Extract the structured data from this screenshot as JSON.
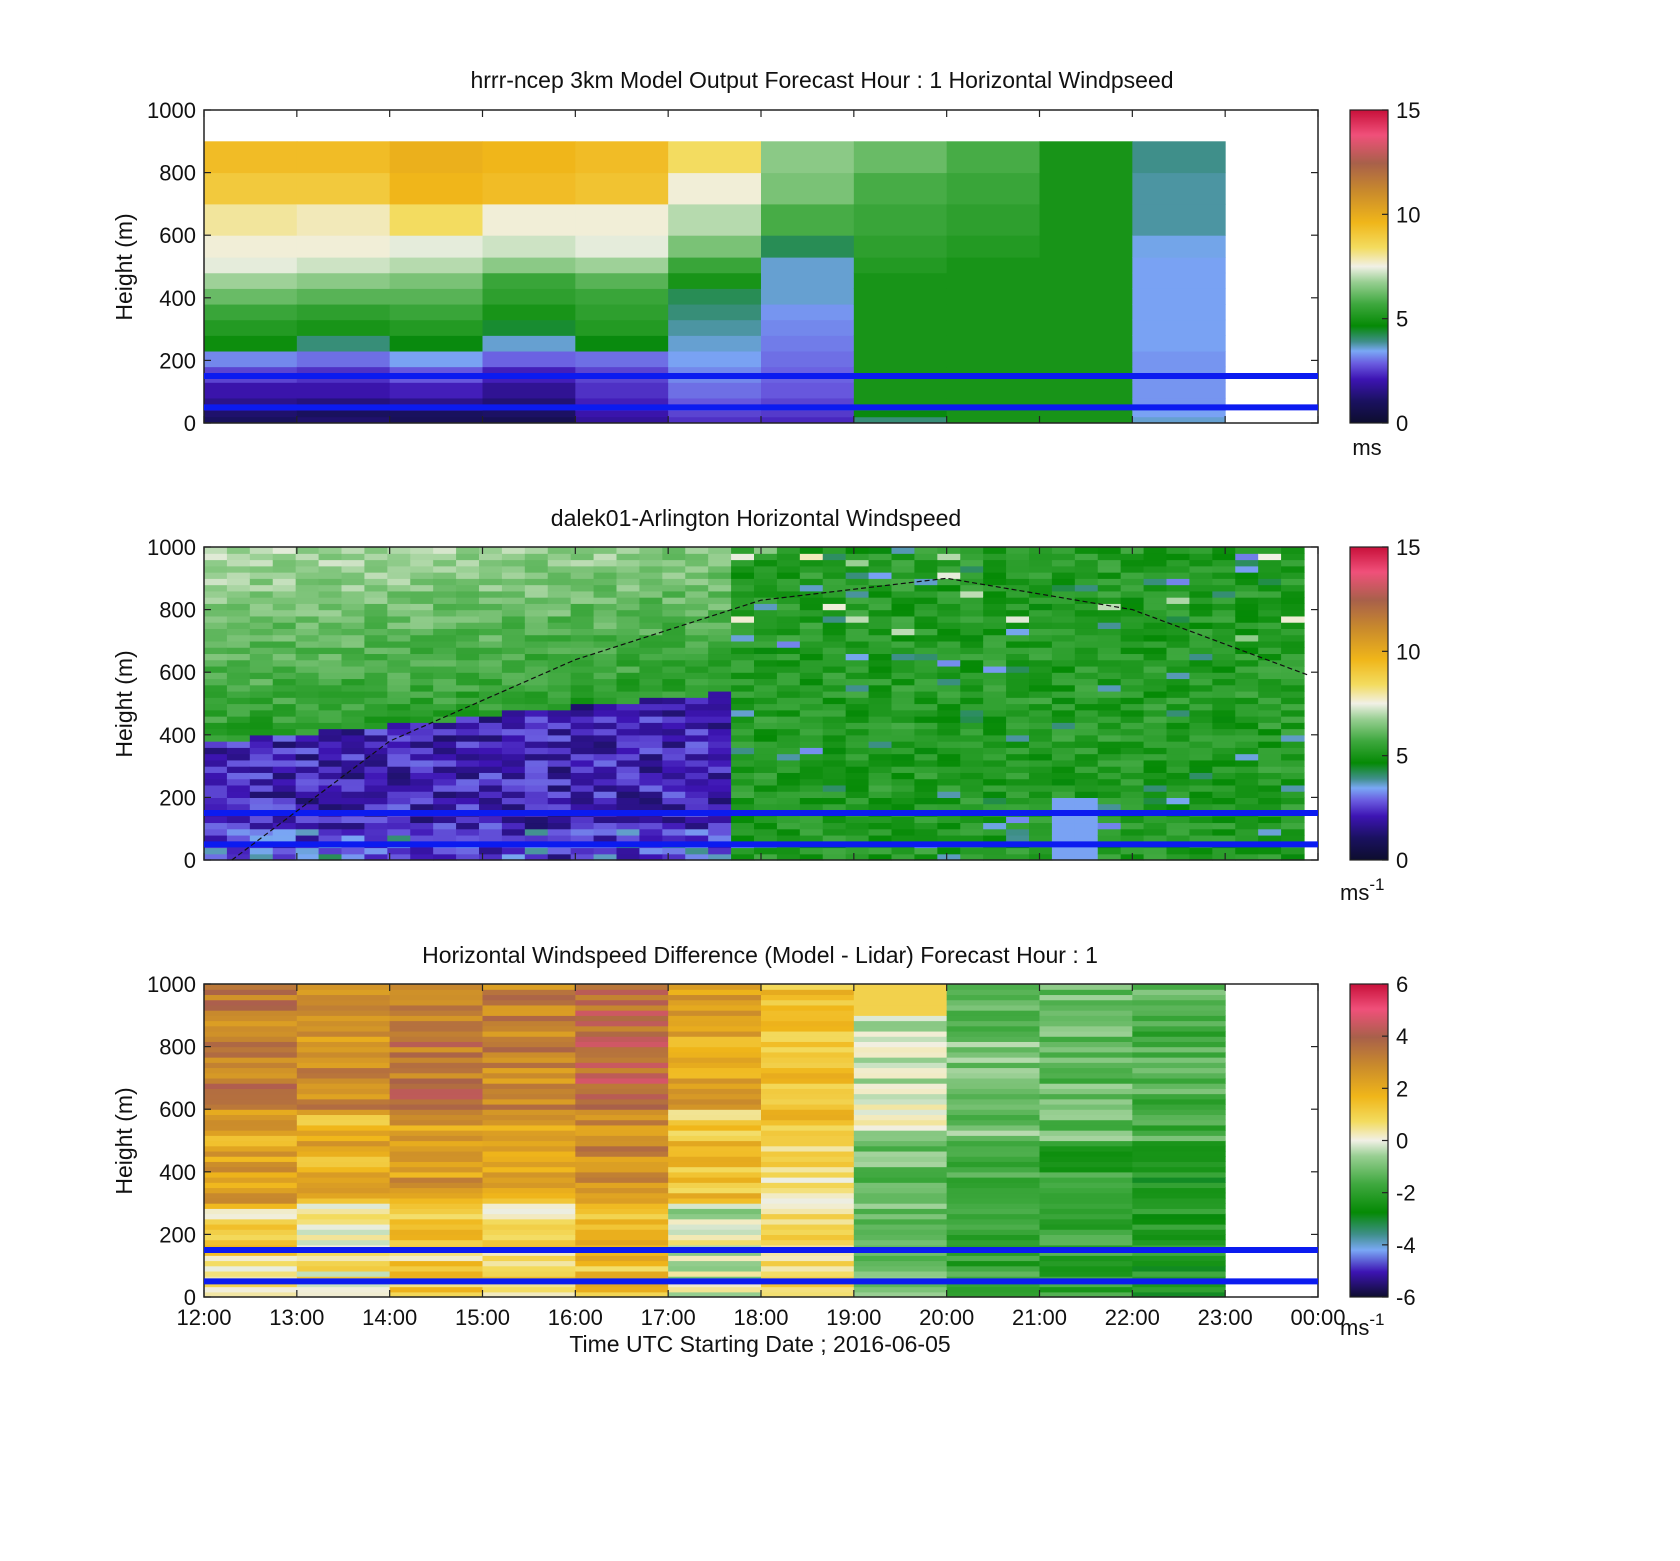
{
  "chart_data": [
    {
      "type": "heatmap",
      "title": "hrrr-ncep 3km Model Output   Forecast Hour : 1 Horizontal Windpseed",
      "xlabel": "",
      "ylabel": "Height (m)",
      "xlim": [
        "12:00",
        "00:00"
      ],
      "ylim": [
        0,
        1000
      ],
      "y_ticks": [
        "0",
        "200",
        "400",
        "600",
        "800",
        "1000"
      ],
      "colorbar": {
        "min": 0,
        "max": 15,
        "ticks": [
          "0",
          "5",
          "10",
          "15"
        ],
        "unit": "ms"
      },
      "reference_lines_m": [
        150,
        50
      ],
      "grid": false,
      "legend": "none"
    },
    {
      "type": "heatmap",
      "title": "dalek01-Arlington  Horizontal Windspeed",
      "xlabel": "",
      "ylabel": "Height (m)",
      "xlim": [
        "12:00",
        "00:00"
      ],
      "ylim": [
        0,
        1000
      ],
      "y_ticks": [
        "0",
        "200",
        "400",
        "600",
        "800",
        "1000"
      ],
      "colorbar": {
        "min": 0,
        "max": 15,
        "ticks": [
          "0",
          "5",
          "10",
          "15"
        ],
        "unit": "ms",
        "unit_exp": "-1"
      },
      "reference_lines_m": [
        150,
        50
      ],
      "boundary_layer_curve": {
        "x_hours": [
          12.3,
          14,
          16,
          18,
          20,
          22,
          23.9
        ],
        "height_m": [
          0,
          380,
          640,
          830,
          900,
          800,
          590
        ]
      },
      "grid": false,
      "legend": "none"
    },
    {
      "type": "heatmap",
      "title": "Horizontal Windspeed Difference (Model - Lidar) Forecast Hour : 1",
      "xlabel": "Time UTC  Starting Date ; 2016-06-05",
      "ylabel": "Height (m)",
      "xlim": [
        "12:00",
        "00:00"
      ],
      "ylim": [
        0,
        1000
      ],
      "x_ticks": [
        "12:00",
        "13:00",
        "14:00",
        "15:00",
        "16:00",
        "17:00",
        "18:00",
        "19:00",
        "20:00",
        "21:00",
        "22:00",
        "23:00",
        "00:00"
      ],
      "y_ticks": [
        "0",
        "200",
        "400",
        "600",
        "800",
        "1000"
      ],
      "colorbar": {
        "min": -6,
        "max": 6,
        "ticks": [
          "-6",
          "-4",
          "-2",
          "0",
          "2",
          "4",
          "6"
        ],
        "unit": "ms",
        "unit_exp": "-1"
      },
      "reference_lines_m": [
        150,
        50
      ],
      "grid": false,
      "legend": "none"
    }
  ]
}
